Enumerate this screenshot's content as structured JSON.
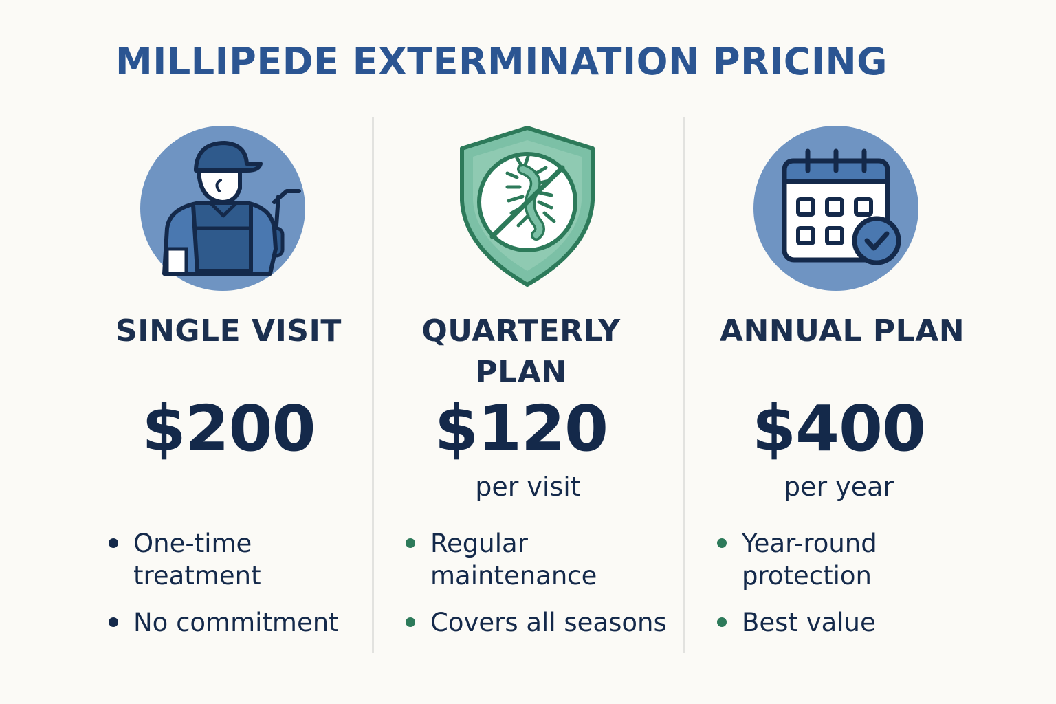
{
  "title": "MILLIPEDE EXTERMINATION PRICING",
  "colors": {
    "title": "#2b5592",
    "text": "#14294a",
    "circle_blue": "#6f94c2",
    "shield_green": "#7cc0a6",
    "dark_green": "#2d7a5a",
    "bullet_dark": "#14294a",
    "bullet_green": "#2d7a5a"
  },
  "plans": [
    {
      "icon": "technician-icon",
      "name": "SINGLE VISIT",
      "price": "$200",
      "unit": "",
      "features": [
        "One-time treatment",
        "No commitment"
      ]
    },
    {
      "icon": "shield-no-bug-icon",
      "name": "QUARTERLY PLAN",
      "price": "$120",
      "unit": "per visit",
      "features": [
        "Regular maintenance",
        "Covers all seasons"
      ]
    },
    {
      "icon": "calendar-check-icon",
      "name": "ANNUAL PLAN",
      "price": "$400",
      "unit": "per year",
      "features": [
        "Year-round protection",
        "Best value"
      ]
    }
  ]
}
